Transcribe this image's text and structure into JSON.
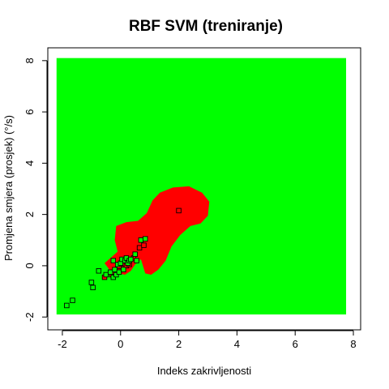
{
  "chart_data": {
    "type": "scatter",
    "title": "RBF SVM (treniranje)",
    "xlabel": "Indeks zakrivljenosti",
    "ylabel": "Promjena smjera (prosjek) (°/s)",
    "xlim": [
      -2.5,
      8.25
    ],
    "ylim": [
      -2.5,
      8.5
    ],
    "x_ticks": [
      -2,
      0,
      2,
      4,
      6,
      8
    ],
    "y_ticks": [
      -2,
      0,
      2,
      4,
      6,
      8
    ],
    "x_tick_labels": [
      "-2",
      "0",
      "2",
      "4",
      "6",
      "8"
    ],
    "y_tick_labels": [
      "-2",
      "0",
      "2",
      "4",
      "6",
      "8"
    ],
    "background_region": {
      "class": "green",
      "color": "#00ff00",
      "x": [
        -2.2,
        7.75
      ],
      "y": [
        -1.9,
        8.1
      ]
    },
    "decision_region": {
      "class": "red",
      "color": "#ff0000",
      "polygon": [
        [
          -0.05,
          -0.3
        ],
        [
          0.15,
          -0.35
        ],
        [
          0.35,
          -0.2
        ],
        [
          0.5,
          0.05
        ],
        [
          0.7,
          0.25
        ],
        [
          0.85,
          -0.3
        ],
        [
          1.05,
          -0.35
        ],
        [
          1.3,
          -0.15
        ],
        [
          1.55,
          0.2
        ],
        [
          1.75,
          0.75
        ],
        [
          2.05,
          1.2
        ],
        [
          2.4,
          1.55
        ],
        [
          2.75,
          1.65
        ],
        [
          3.0,
          1.95
        ],
        [
          3.05,
          2.5
        ],
        [
          2.8,
          2.85
        ],
        [
          2.35,
          3.1
        ],
        [
          1.8,
          3.05
        ],
        [
          1.35,
          2.85
        ],
        [
          1.1,
          2.55
        ],
        [
          0.9,
          2.05
        ],
        [
          0.6,
          1.75
        ],
        [
          0.2,
          1.7
        ],
        [
          -0.15,
          1.55
        ],
        [
          -0.2,
          1.0
        ],
        [
          -0.1,
          0.55
        ],
        [
          -0.3,
          0.35
        ],
        [
          -0.55,
          0.1
        ],
        [
          -0.35,
          -0.2
        ]
      ]
    },
    "series": [
      {
        "marker": "square",
        "fill": "#ff0000",
        "points": [
          [
            -0.55,
            -0.45
          ],
          [
            -0.3,
            -0.35
          ],
          [
            -0.2,
            -0.25
          ],
          [
            -0.05,
            -0.2
          ],
          [
            0.1,
            -0.1
          ],
          [
            0.2,
            0.0
          ],
          [
            0.3,
            0.05
          ],
          [
            0.45,
            0.3
          ],
          [
            0.65,
            0.7
          ],
          [
            0.8,
            0.8
          ],
          [
            2.0,
            2.15
          ]
        ]
      },
      {
        "marker": "square",
        "fill": "#00ff00",
        "points": [
          [
            -1.85,
            -1.55
          ],
          [
            -1.65,
            -1.35
          ],
          [
            -0.95,
            -0.85
          ],
          [
            -1.0,
            -0.65
          ],
          [
            -0.75,
            -0.2
          ],
          [
            -0.5,
            -0.35
          ],
          [
            -0.35,
            -0.25
          ],
          [
            -0.25,
            -0.45
          ],
          [
            -0.25,
            0.2
          ],
          [
            -0.2,
            -0.15
          ],
          [
            -0.15,
            -0.35
          ],
          [
            -0.1,
            0.05
          ],
          [
            -0.05,
            -0.25
          ],
          [
            0.0,
            0.1
          ],
          [
            0.05,
            0.25
          ],
          [
            0.1,
            -0.15
          ],
          [
            0.15,
            0.2
          ],
          [
            0.2,
            0.3
          ],
          [
            0.25,
            0.1
          ],
          [
            0.3,
            0.2
          ],
          [
            0.35,
            0.25
          ],
          [
            0.5,
            0.45
          ],
          [
            0.55,
            0.2
          ],
          [
            0.7,
            1.0
          ],
          [
            0.85,
            1.05
          ]
        ]
      }
    ]
  }
}
